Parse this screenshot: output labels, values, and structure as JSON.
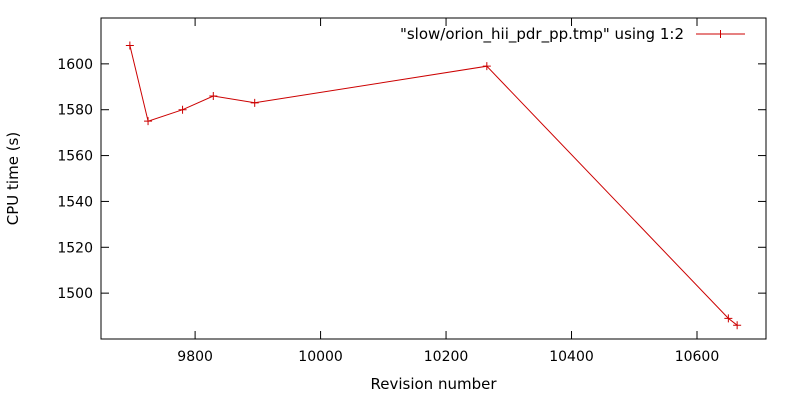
{
  "chart_data": {
    "type": "line",
    "title": "",
    "xlabel": "Revision number",
    "ylabel": "CPU time (s)",
    "xlim": [
      9650,
      10710
    ],
    "ylim": [
      1480,
      1620
    ],
    "xticks": [
      9800,
      10000,
      10200,
      10400,
      10600
    ],
    "yticks": [
      1500,
      1520,
      1540,
      1560,
      1580,
      1600
    ],
    "grid": false,
    "legend_position": "top-right",
    "series": [
      {
        "name": "\"slow/orion_hii_pdr_pp.tmp\" using 1:2",
        "color": "#cc0000",
        "marker": "plus",
        "x": [
          9696,
          9725,
          9780,
          9829,
          9895,
          10265,
          10650,
          10664
        ],
        "y": [
          1608,
          1575,
          1580,
          1586,
          1583,
          1599,
          1489,
          1486
        ]
      }
    ]
  }
}
